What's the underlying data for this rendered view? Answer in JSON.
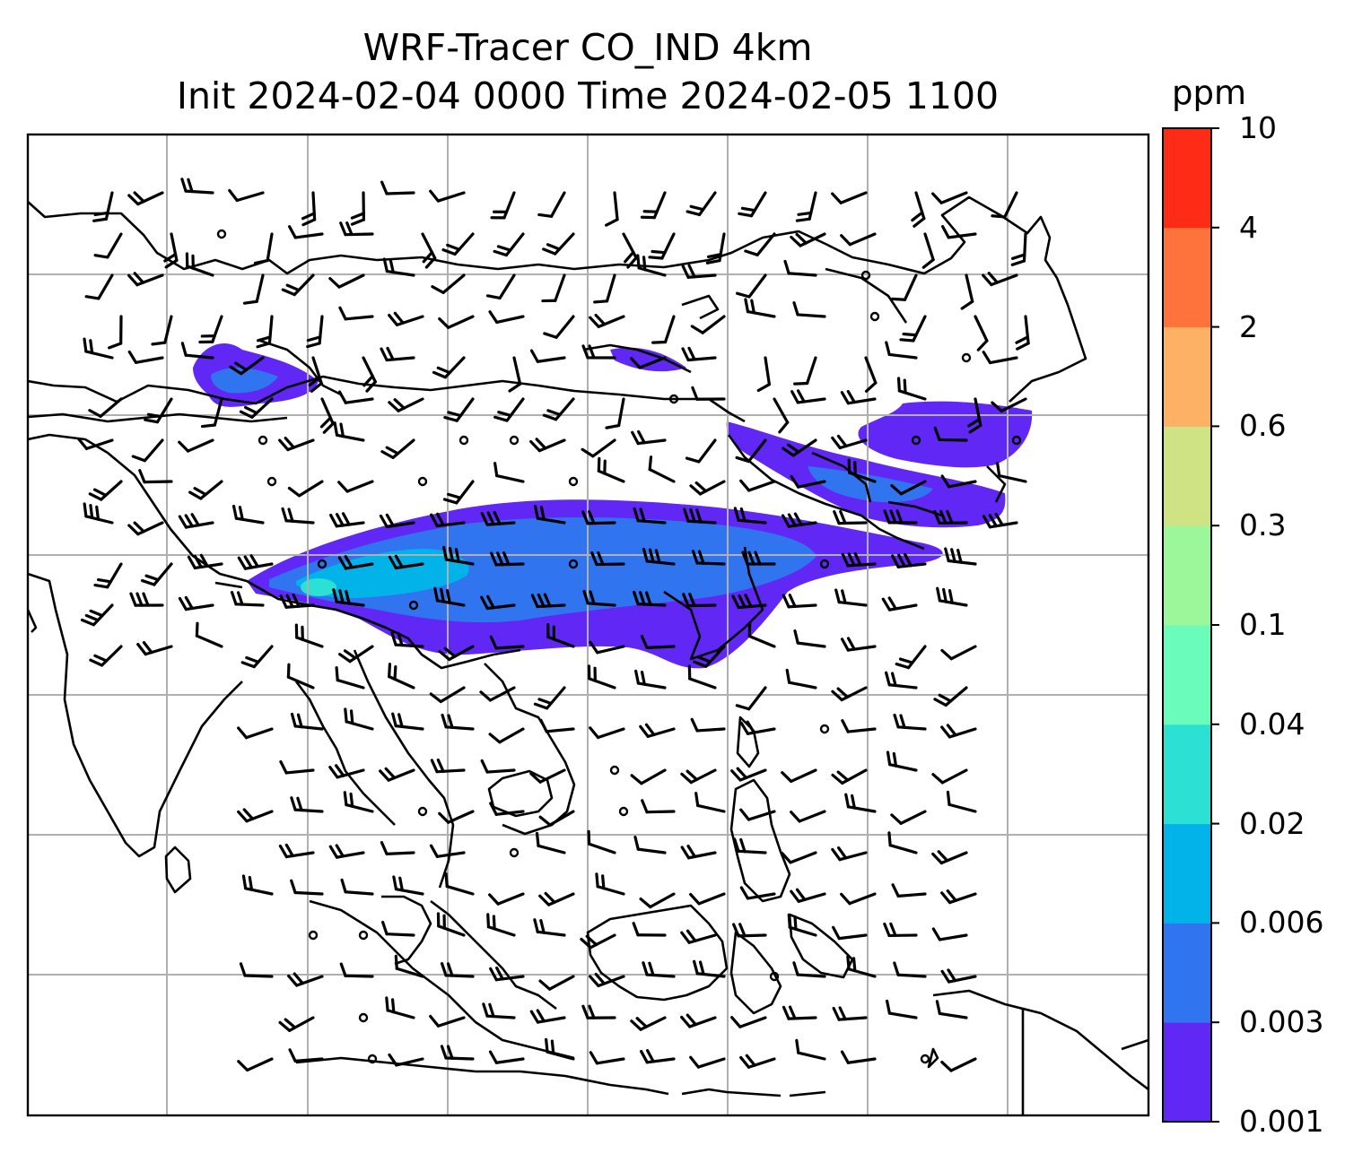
{
  "title": "WRF-Tracer CO_IND 4km",
  "subtitle": "Init 2024-02-04 0000 Time 2024-02-05 1100",
  "colorbar": {
    "unit": "ppm",
    "ticks": [
      "0.001",
      "0.003",
      "0.006",
      "0.02",
      "0.04",
      "0.1",
      "0.3",
      "0.6",
      "2",
      "4",
      "10"
    ],
    "colors": [
      "#6127f5",
      "#3174f0",
      "#02b3ea",
      "#2de0d4",
      "#69fcbb",
      "#9bf79a",
      "#cfe284",
      "#fdb165",
      "#fe733c",
      "#fe2b16"
    ]
  },
  "map": {
    "grid_color": "#b0b0b0",
    "coastline_color": "#000000",
    "wind_barbs": "black"
  }
}
